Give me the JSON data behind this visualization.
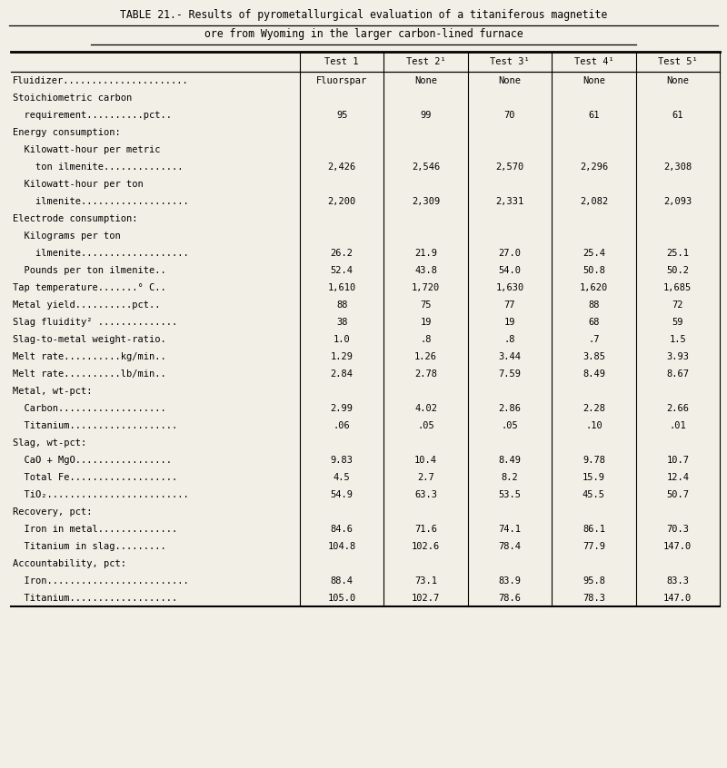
{
  "title_line1": "TABLE 21.- Results of pyrometallurgical evaluation of a titaniferous magnetite",
  "title_line2": "ore from Wyoming in the larger carbon-lined furnace",
  "col_headers": [
    "Test 1",
    "Test 2¹",
    "Test 3¹",
    "Test 4¹",
    "Test 5¹"
  ],
  "rows": [
    {
      "label": "Fluidizer......................",
      "values": [
        "Fluorspar",
        "None",
        "None",
        "None",
        "None"
      ],
      "section": false
    },
    {
      "label": "Stoichiometric carbon",
      "values": [
        "",
        "",
        "",
        "",
        ""
      ],
      "section": true
    },
    {
      "label": "  requirement..........pct..",
      "values": [
        "95",
        "99",
        "70",
        "61",
        "61"
      ],
      "section": false
    },
    {
      "label": "Energy consumption:",
      "values": [
        "",
        "",
        "",
        "",
        ""
      ],
      "section": true
    },
    {
      "label": "  Kilowatt-hour per metric",
      "values": [
        "",
        "",
        "",
        "",
        ""
      ],
      "section": true
    },
    {
      "label": "    ton ilmenite..............",
      "values": [
        "2,426",
        "2,546",
        "2,570",
        "2,296",
        "2,308"
      ],
      "section": false
    },
    {
      "label": "  Kilowatt-hour per ton",
      "values": [
        "",
        "",
        "",
        "",
        ""
      ],
      "section": true
    },
    {
      "label": "    ilmenite...................",
      "values": [
        "2,200",
        "2,309",
        "2,331",
        "2,082",
        "2,093"
      ],
      "section": false
    },
    {
      "label": "Electrode consumption:",
      "values": [
        "",
        "",
        "",
        "",
        ""
      ],
      "section": true
    },
    {
      "label": "  Kilograms per ton",
      "values": [
        "",
        "",
        "",
        "",
        ""
      ],
      "section": true
    },
    {
      "label": "    ilmenite...................",
      "values": [
        "26.2",
        "21.9",
        "27.0",
        "25.4",
        "25.1"
      ],
      "section": false
    },
    {
      "label": "  Pounds per ton ilmenite..",
      "values": [
        "52.4",
        "43.8",
        "54.0",
        "50.8",
        "50.2"
      ],
      "section": false
    },
    {
      "label": "Tap temperature.......° C..",
      "values": [
        "1,610",
        "1,720",
        "1,630",
        "1,620",
        "1,685"
      ],
      "section": false
    },
    {
      "label": "Metal yield..........pct..",
      "values": [
        "88",
        "75",
        "77",
        "88",
        "72"
      ],
      "section": false
    },
    {
      "label": "Slag fluidity² ..............",
      "values": [
        "38",
        "19",
        "19",
        "68",
        "59"
      ],
      "section": false
    },
    {
      "label": "Slag-to-metal weight-ratio.",
      "values": [
        "1.0",
        ".8",
        ".8",
        ".7",
        "1.5"
      ],
      "section": false
    },
    {
      "label": "Melt rate..........kg/min..",
      "values": [
        "1.29",
        "1.26",
        "3.44",
        "3.85",
        "3.93"
      ],
      "section": false
    },
    {
      "label": "Melt rate..........lb/min..",
      "values": [
        "2.84",
        "2.78",
        "7.59",
        "8.49",
        "8.67"
      ],
      "section": false
    },
    {
      "label": "Metal, wt-pct:",
      "values": [
        "",
        "",
        "",
        "",
        ""
      ],
      "section": true
    },
    {
      "label": "  Carbon...................",
      "values": [
        "2.99",
        "4.02",
        "2.86",
        "2.28",
        "2.66"
      ],
      "section": false
    },
    {
      "label": "  Titanium...................",
      "values": [
        ".06",
        ".05",
        ".05",
        ".10",
        ".01"
      ],
      "section": false
    },
    {
      "label": "Slag, wt-pct:",
      "values": [
        "",
        "",
        "",
        "",
        ""
      ],
      "section": true
    },
    {
      "label": "  CaO + MgO.................",
      "values": [
        "9.83",
        "10.4",
        "8.49",
        "9.78",
        "10.7"
      ],
      "section": false
    },
    {
      "label": "  Total Fe...................",
      "values": [
        "4.5",
        "2.7",
        "8.2",
        "15.9",
        "12.4"
      ],
      "section": false
    },
    {
      "label": "  TiO₂.........................",
      "values": [
        "54.9",
        "63.3",
        "53.5",
        "45.5",
        "50.7"
      ],
      "section": false
    },
    {
      "label": "Recovery, pct:",
      "values": [
        "",
        "",
        "",
        "",
        ""
      ],
      "section": true
    },
    {
      "label": "  Iron in metal..............",
      "values": [
        "84.6",
        "71.6",
        "74.1",
        "86.1",
        "70.3"
      ],
      "section": false
    },
    {
      "label": "  Titanium in slag.........",
      "values": [
        "104.8",
        "102.6",
        "78.4",
        "77.9",
        "147.0"
      ],
      "section": false
    },
    {
      "label": "Accountability, pct:",
      "values": [
        "",
        "",
        "",
        "",
        ""
      ],
      "section": true
    },
    {
      "label": "  Iron.........................",
      "values": [
        "88.4",
        "73.1",
        "83.9",
        "95.8",
        "83.3"
      ],
      "section": false
    },
    {
      "label": "  Titanium...................",
      "values": [
        "105.0",
        "102.7",
        "78.6",
        "78.3",
        "147.0"
      ],
      "section": false
    }
  ],
  "bg_color": "#f2efe6",
  "text_color": "#000000",
  "font_size": 7.5,
  "title_font_size": 8.3,
  "fig_width": 8.0,
  "fig_height": 8.46,
  "dpi": 100
}
